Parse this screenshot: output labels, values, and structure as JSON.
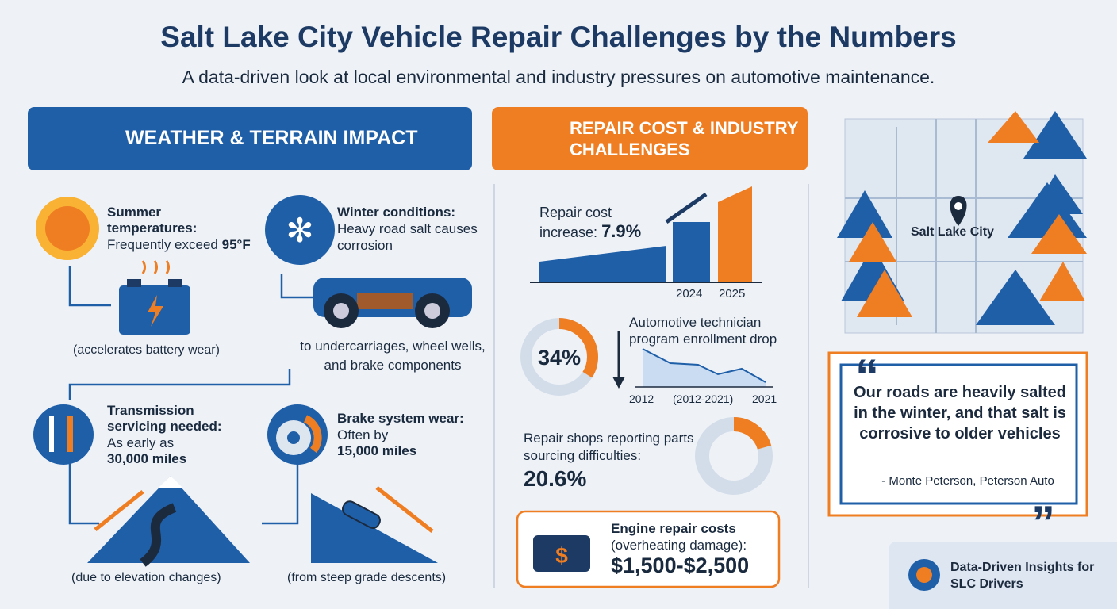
{
  "header": {
    "title": "Salt Lake City Vehicle Repair Challenges by the Numbers",
    "subtitle": "A data-driven look at local environmental and industry pressures on automotive maintenance."
  },
  "weather": {
    "heading": "WEATHER & TERRAIN IMPACT",
    "summer": {
      "label": "Summer temperatures:",
      "text": "Frequently exceed",
      "highlight": "95°F",
      "note": "(accelerates battery wear)"
    },
    "winter": {
      "label": "Winter conditions:",
      "text": "Heavy road salt causes corrosion",
      "note": "to undercarriages, wheel wells, and brake components"
    },
    "transmission": {
      "label": "Transmission servicing needed:",
      "text": "As early as",
      "highlight": "30,000 miles",
      "note": "(due to elevation changes)"
    },
    "brake": {
      "label": "Brake system wear:",
      "text": "Often by",
      "highlight": "15,000 miles",
      "note": "(from steep grade descents)"
    }
  },
  "repair": {
    "heading": "REPAIR COST & INDUSTRY CHALLENGES",
    "cost": {
      "label": "Repair cost increase:",
      "value": "7.9%",
      "years": [
        "2024",
        "2025"
      ]
    },
    "enrollment": {
      "percent": {
        "value": 34,
        "label": "34%"
      },
      "text": "Automotive technician program enrollment drop",
      "axis": [
        "2012",
        "(2012-2021)",
        "2021"
      ]
    },
    "parts": {
      "text": "Repair shops reporting parts sourcing difficulties:",
      "percent": {
        "value": 20.6,
        "label": "20.6%"
      }
    },
    "engine": {
      "label": "Engine repair costs",
      "sub": "(overheating damage):",
      "value": "$1,500-$2,500"
    }
  },
  "map": {
    "label": "Salt Lake City"
  },
  "quote": {
    "text": "Our roads are heavily salted in the winter, and that salt is corrosive to older vehicles",
    "attribution": "- Monte Peterson, Peterson Auto"
  },
  "badge": {
    "text": "Data-Driven Insights for SLC Drivers"
  }
}
